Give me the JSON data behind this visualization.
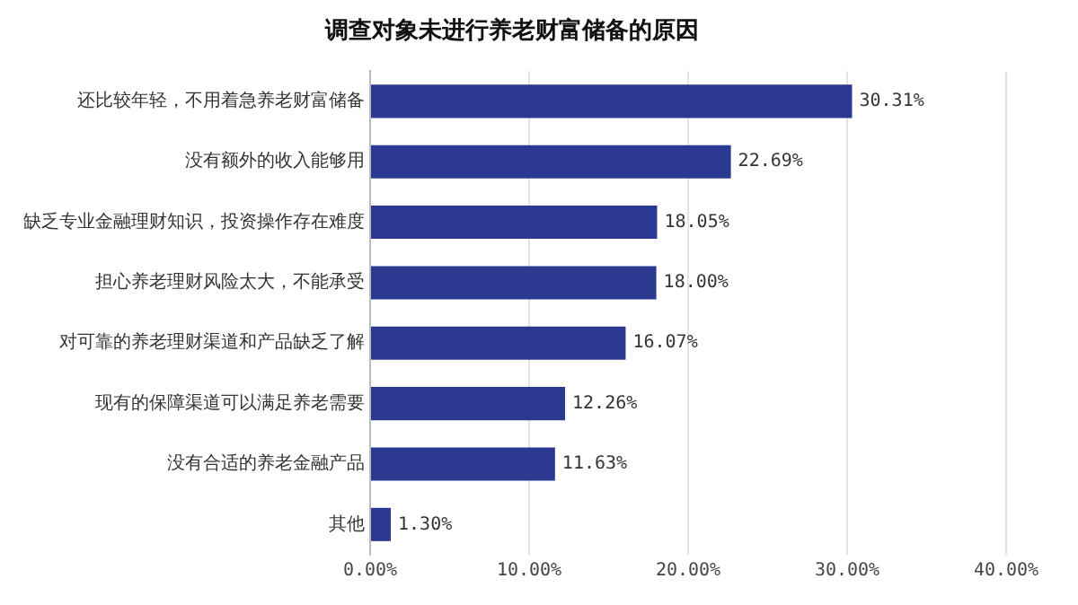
{
  "chart_data": {
    "type": "bar",
    "orientation": "horizontal",
    "title": "调查对象未进行养老财富储备的原因",
    "categories": [
      "还比较年轻，不用着急养老财富储备",
      "没有额外的收入能够用",
      "缺乏专业金融理财知识，投资操作存在难度",
      "担心养老理财风险太大，不能承受",
      "对可靠的养老理财渠道和产品缺乏了解",
      "现有的保障渠道可以满足养老需要",
      "没有合适的养老金融产品",
      "其他"
    ],
    "values": [
      30.31,
      22.69,
      18.05,
      18.0,
      16.07,
      12.26,
      11.63,
      1.3
    ],
    "value_labels": [
      "30.31%",
      "22.69%",
      "18.05%",
      "18.00%",
      "16.07%",
      "12.26%",
      "11.63%",
      "1.30%"
    ],
    "color": "#2b3990",
    "xlim": [
      0,
      40
    ],
    "xticks": [
      {
        "value": 0,
        "label": "0.00%"
      },
      {
        "value": 10,
        "label": "10.00%"
      },
      {
        "value": 20,
        "label": "20.00%"
      },
      {
        "value": 30,
        "label": "30.00%"
      },
      {
        "value": 40,
        "label": "40.00%"
      }
    ],
    "grid": "x",
    "legend": false
  }
}
